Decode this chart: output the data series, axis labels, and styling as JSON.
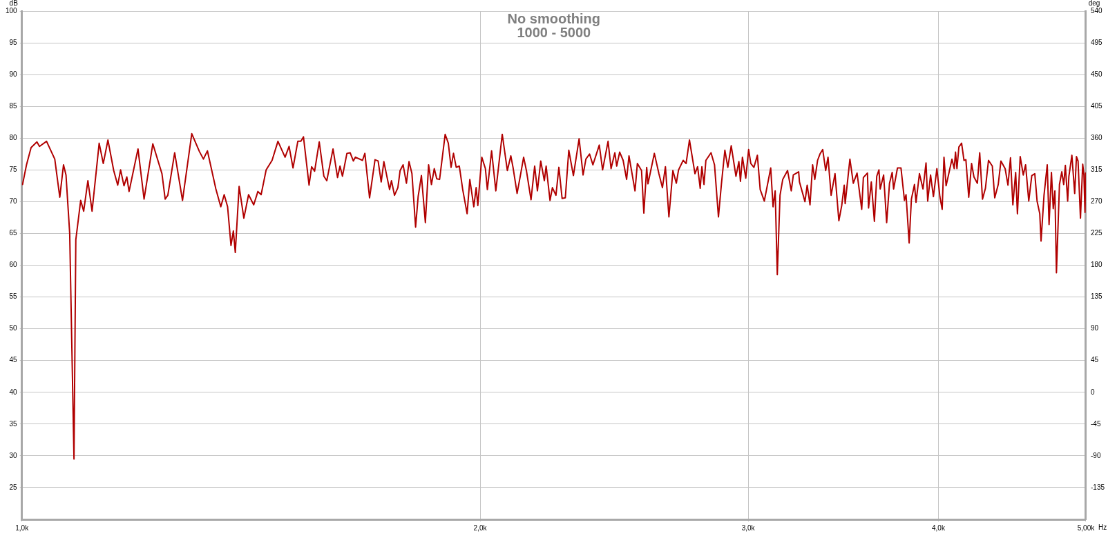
{
  "chart_data": {
    "type": "line",
    "title": "No smoothing",
    "subtitle": "1000 - 5000",
    "xlabel": "Hz",
    "ylabel": "dB",
    "y2label": "deg",
    "log": "x",
    "grid": true,
    "legend": false,
    "marker": "none",
    "line_style": "solid",
    "xlim": [
      1000,
      5000
    ],
    "xticks": [
      {
        "value": 1000,
        "label": "1,0k"
      },
      {
        "value": 2000,
        "label": "2,0k"
      },
      {
        "value": 3000,
        "label": "3,0k"
      },
      {
        "value": 4000,
        "label": "4,0k"
      },
      {
        "value": 5000,
        "label": "5,00k"
      }
    ],
    "ylim": [
      20,
      100
    ],
    "yticks": [
      25,
      30,
      35,
      40,
      45,
      50,
      55,
      60,
      65,
      70,
      75,
      80,
      85,
      90,
      95,
      100
    ],
    "y2lim": [
      -180,
      540
    ],
    "y2ticks": [
      -135,
      -90,
      -45,
      0,
      45,
      90,
      135,
      180,
      225,
      270,
      315,
      360,
      405,
      450,
      495,
      540
    ],
    "x": [
      1001,
      1007,
      1014,
      1023,
      1027,
      1038,
      1051,
      1059,
      1065,
      1069,
      1075,
      1082,
      1085,
      1093,
      1098,
      1105,
      1112,
      1124,
      1131,
      1139,
      1149,
      1156,
      1161,
      1167,
      1172,
      1176,
      1192,
      1203,
      1219,
      1236,
      1242,
      1247,
      1260,
      1275,
      1293,
      1308,
      1316,
      1324,
      1341,
      1351,
      1358,
      1365,
      1372,
      1377,
      1381,
      1389,
      1399,
      1409,
      1420,
      1429,
      1436,
      1447,
      1460,
      1473,
      1489,
      1498,
      1507,
      1518,
      1525,
      1531,
      1544,
      1550,
      1557,
      1568,
      1579,
      1586,
      1601,
      1612,
      1618,
      1624,
      1635,
      1643,
      1651,
      1656,
      1674,
      1680,
      1692,
      1706,
      1714,
      1722,
      1729,
      1744,
      1749,
      1757,
      1766,
      1772,
      1780,
      1789,
      1796,
      1804,
      1814,
      1821,
      1830,
      1841,
      1850,
      1858,
      1866,
      1873,
      1881,
      1897,
      1906,
      1914,
      1921,
      1929,
      1938,
      1948,
      1961,
      1969,
      1981,
      1988,
      1993,
      2005,
      2016,
      2022,
      2035,
      2048,
      2068,
      2084,
      2095,
      2102,
      2115,
      2127,
      2136,
      2145,
      2160,
      2172,
      2181,
      2192,
      2204,
      2210,
      2223,
      2231,
      2243,
      2253,
      2264,
      2275,
      2287,
      2303,
      2323,
      2337,
      2347,
      2360,
      2372,
      2395,
      2407,
      2427,
      2438,
      2452,
      2459,
      2470,
      2483,
      2496,
      2505,
      2528,
      2537,
      2553,
      2562,
      2573,
      2578,
      2603,
      2621,
      2635,
      2647,
      2661,
      2677,
      2691,
      2700,
      2719,
      2731,
      2745,
      2768,
      2779,
      2790,
      2797,
      2806,
      2814,
      2836,
      2851,
      2868,
      2881,
      2896,
      2909,
      2924,
      2945,
      2958,
      2965,
      2974,
      2989,
      3002,
      3012,
      3026,
      3042,
      3055,
      3074,
      3104,
      3115,
      3125,
      3135,
      3148,
      3161,
      3184,
      3202,
      3212,
      3238,
      3242,
      3269,
      3280,
      3294,
      3307,
      3318,
      3332,
      3344,
      3358,
      3373,
      3385,
      3401,
      3421,
      3441,
      3456,
      3469,
      3474,
      3499,
      3517,
      3537,
      3562,
      3571,
      3593,
      3599,
      3614,
      3631,
      3644,
      3656,
      3663,
      3682,
      3699,
      3715,
      3730,
      3738,
      3760,
      3780,
      3800,
      3809,
      3827,
      3840,
      3858,
      3867,
      3887,
      3908,
      3926,
      3936,
      3953,
      3970,
      3991,
      4009,
      4023,
      4034,
      4047,
      4066,
      4083,
      4097,
      4105,
      4114,
      4126,
      4143,
      4158,
      4170,
      4188,
      4206,
      4221,
      4243,
      4258,
      4276,
      4295,
      4315,
      4340,
      4356,
      4379,
      4397,
      4425,
      4444,
      4461,
      4477,
      4496,
      4508,
      4527,
      4548,
      4564,
      4586,
      4607,
      4628,
      4644,
      4663,
      4672,
      4693,
      4716,
      4729,
      4746,
      4759,
      4771,
      4782,
      4804,
      4821,
      4835,
      4847,
      4864,
      4873,
      4895,
      4916,
      4929,
      4941,
      4959,
      4976,
      4985,
      4993,
      4998
    ],
    "series": [
      {
        "color": "#b00000",
        "values": [
          72.7,
          75.8,
          78.5,
          79.4,
          78.7,
          79.5,
          76.7,
          70.7,
          75.8,
          74.2,
          65,
          29.5,
          64,
          70.2,
          68.5,
          73.3,
          68.5,
          79.2,
          76,
          79.7,
          74.9,
          72.6,
          75,
          72.5,
          73.9,
          71.6,
          78.3,
          70.4,
          79.1,
          74.4,
          70.4,
          71,
          77.7,
          70.2,
          80.7,
          77.9,
          76.7,
          78,
          72,
          69.2,
          71.1,
          69.2,
          63.1,
          65.4,
          62,
          72.4,
          67.4,
          71.1,
          69.5,
          71.6,
          71.1,
          75,
          76.5,
          79.5,
          77,
          78.7,
          75.3,
          79.5,
          79.5,
          80.2,
          72.6,
          75.5,
          74.8,
          79.4,
          74,
          73.3,
          78.3,
          73.8,
          75.6,
          74,
          77.6,
          77.7,
          76.4,
          77,
          76.5,
          77.6,
          70.6,
          76.6,
          76.4,
          73.1,
          76.3,
          71.9,
          73.3,
          71,
          72.2,
          74.9,
          75.8,
          72.9,
          76.3,
          74.4,
          66,
          70.8,
          74.1,
          66.7,
          75.8,
          72.7,
          75.2,
          73.6,
          73.5,
          80.6,
          79.2,
          75.4,
          77.6,
          75.4,
          75.6,
          71.9,
          68.1,
          73.5,
          69.2,
          72.2,
          69.4,
          77,
          75.2,
          71.9,
          78,
          71.7,
          80.6,
          74.9,
          77.2,
          75.4,
          71.3,
          74.5,
          77,
          74.9,
          70.3,
          75.6,
          71.7,
          76.4,
          73.3,
          75.6,
          70.2,
          72.2,
          71,
          75.4,
          70.5,
          70.6,
          78.1,
          74.1,
          79.9,
          74.2,
          76.7,
          77.5,
          75.8,
          78.9,
          75,
          79.5,
          75.2,
          77.7,
          75.6,
          77.8,
          76.5,
          73.5,
          77.2,
          71.7,
          76,
          74.9,
          68.2,
          75.4,
          72.8,
          77.6,
          74.4,
          72.2,
          75.5,
          67.6,
          74.9,
          72.9,
          75,
          76.5,
          76,
          79.7,
          74.4,
          75.5,
          72.1,
          75.5,
          72.7,
          76.5,
          77.7,
          75.8,
          67.6,
          72.8,
          78.1,
          75.4,
          78.8,
          74,
          76.3,
          73.2,
          77,
          73.7,
          78.2,
          76,
          75.4,
          77.3,
          71.9,
          70.1,
          75.3,
          69.2,
          71.7,
          58.5,
          71,
          73.5,
          74.9,
          71.7,
          74.2,
          74.7,
          73.1,
          70,
          72.6,
          69.5,
          75.8,
          73.5,
          76.5,
          77.5,
          78.2,
          74.9,
          77,
          71,
          74.4,
          67,
          69.4,
          72.6,
          69.7,
          76.7,
          72.9,
          74.5,
          68.8,
          73.8,
          74.5,
          69,
          73.1,
          66.9,
          74,
          75,
          72,
          74.2,
          66.7,
          72.9,
          74.6,
          72,
          75.3,
          75.3,
          70.2,
          71.1,
          63.5,
          70.4,
          72.7,
          69.9,
          74.4,
          72,
          76.1,
          70.1,
          74.2,
          70.8,
          75.2,
          70.8,
          68.8,
          77,
          72.5,
          74.7,
          76.7,
          75.2,
          77.8,
          75.2,
          78.6,
          79.2,
          76.5,
          76.6,
          70.7,
          76,
          73.9,
          72.9,
          77.7,
          70.4,
          72.1,
          76.5,
          75.6,
          70.6,
          72.7,
          76.4,
          75.2,
          72.6,
          76.9,
          69.5,
          74.6,
          68.1,
          77.1,
          74.2,
          75.8,
          70.1,
          74.1,
          74.4,
          70.1,
          68.1,
          63.8,
          71,
          75.8,
          66.4,
          74.6,
          68.9,
          71.7,
          58.8,
          72.7,
          74.7,
          72.7,
          75.7,
          70.1,
          74,
          77.3,
          71.3,
          77.1,
          76.4,
          67.4,
          75.9,
          74.2,
          68.3,
          74.5
        ]
      }
    ]
  }
}
